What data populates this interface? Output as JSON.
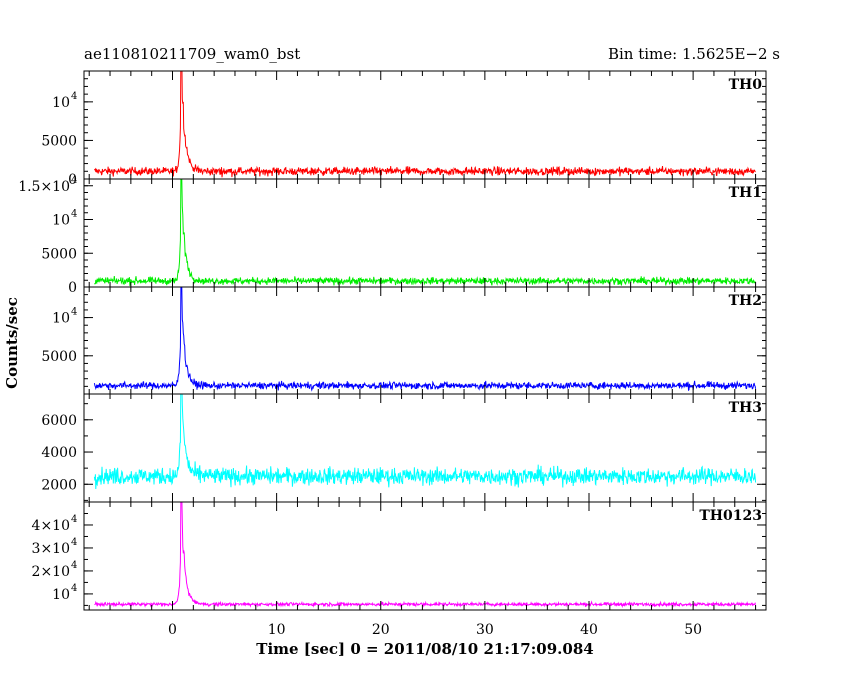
{
  "header": {
    "title": "ae110810211709_wam0_bst",
    "bin_time": "Bin time: 1.5625E−2 s"
  },
  "xlabel": "Time [sec] 0 = 2011/08/10 21:17:09.084",
  "ylabel": "Counts/sec",
  "chart_data": {
    "type": "line",
    "title": "ae110810211709_wam0_bst",
    "subtitle": "Bin time: 1.5625E−2 s",
    "xlabel": "Time [sec] 0 = 2011/08/10 21:17:09.084",
    "ylabel": "Counts/sec",
    "xlim": [
      -8.5,
      57
    ],
    "data_range": [
      -7.5,
      56
    ],
    "x_ticks": [
      0,
      10,
      20,
      30,
      40,
      50
    ],
    "x_tick_labels": [
      "0",
      "10",
      "20",
      "30",
      "40",
      "50"
    ],
    "burst_peak_time": 0.85,
    "grid": false,
    "panels": [
      {
        "name": "TH0",
        "color": "#ff0000",
        "ylim": [
          0,
          14000
        ],
        "baseline": 1000,
        "noise": 520,
        "peak": 16000,
        "y_ticks": [
          {
            "value": 0,
            "label": "0"
          },
          {
            "value": 5000,
            "label": "5000"
          },
          {
            "value": 10000,
            "label": "10",
            "exp": "4"
          }
        ]
      },
      {
        "name": "TH1",
        "color": "#00ee00",
        "ylim": [
          0,
          16000
        ],
        "baseline": 900,
        "noise": 500,
        "peak": 16000,
        "y_ticks": [
          {
            "value": 0,
            "label": "0"
          },
          {
            "value": 5000,
            "label": "5000"
          },
          {
            "value": 10000,
            "label": "10",
            "exp": "4"
          },
          {
            "value": 15000,
            "label": "1.5×10",
            "exp": "4"
          }
        ]
      },
      {
        "name": "TH2",
        "color": "#0000ff",
        "ylim": [
          0,
          14000
        ],
        "baseline": 1100,
        "noise": 450,
        "peak": 14000,
        "y_ticks": [
          {
            "value": 5000,
            "label": "5000"
          },
          {
            "value": 10000,
            "label": "10",
            "exp": "4"
          }
        ]
      },
      {
        "name": "TH3",
        "color": "#00ffff",
        "ylim": [
          900,
          7600
        ],
        "baseline": 2500,
        "noise": 520,
        "peak": 8500,
        "y_ticks": [
          {
            "value": 2000,
            "label": "2000"
          },
          {
            "value": 4000,
            "label": "4000"
          },
          {
            "value": 6000,
            "label": "6000"
          }
        ]
      },
      {
        "name": "TH0123",
        "color": "#ff00ff",
        "ylim": [
          3000,
          50000
        ],
        "baseline": 5500,
        "noise": 700,
        "peak": 53000,
        "y_ticks": [
          {
            "value": 10000,
            "label": "10",
            "exp": "4"
          },
          {
            "value": 20000,
            "label": "2×10",
            "exp": "4"
          },
          {
            "value": 30000,
            "label": "3×10",
            "exp": "4"
          },
          {
            "value": 40000,
            "label": "4×10",
            "exp": "4"
          }
        ]
      }
    ]
  }
}
